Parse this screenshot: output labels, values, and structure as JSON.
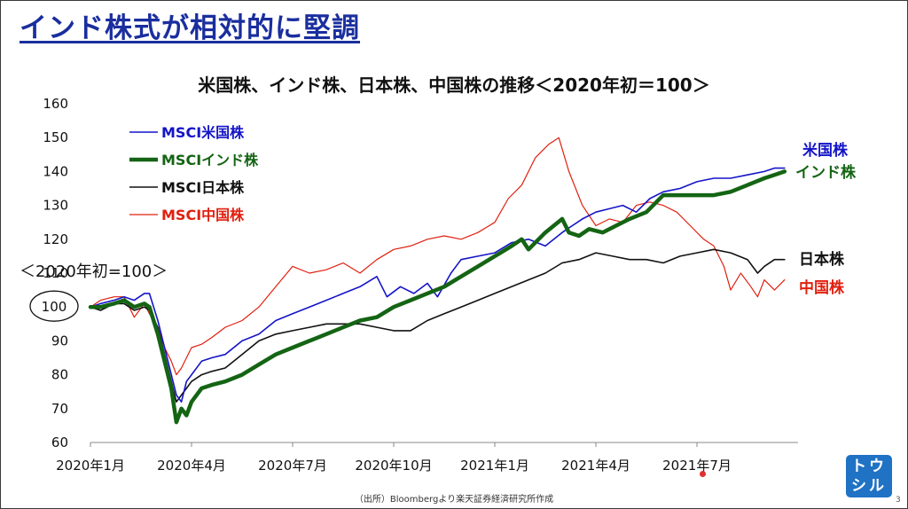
{
  "slide": {
    "title": "インド株式が相対的に堅調",
    "source": "（出所）Bloombergより楽天証券経済研究所作成",
    "page_number": "3",
    "logo_text": [
      "トウ",
      "シル"
    ]
  },
  "colors": {
    "us": "#1414c8",
    "india": "#146414",
    "japan": "#111111",
    "china": "#e02010",
    "title": "#1a2e9e"
  },
  "chart_data": {
    "type": "line",
    "title": "米国株、インド株、日本株、中国株の推移＜2020年初＝100＞",
    "ylabel": "＜2020年初=100＞",
    "baseline_label": "100",
    "ylim": [
      60,
      160
    ],
    "yticks": [
      60,
      70,
      80,
      90,
      100,
      110,
      120,
      130,
      140,
      150,
      160
    ],
    "xlim": [
      0,
      21
    ],
    "xticks": [
      {
        "x": 0,
        "label": "2020年1月"
      },
      {
        "x": 3,
        "label": "2020年4月"
      },
      {
        "x": 6,
        "label": "2020年7月"
      },
      {
        "x": 9,
        "label": "2020年10月"
      },
      {
        "x": 12,
        "label": "2021年1月"
      },
      {
        "x": 15,
        "label": "2021年4月"
      },
      {
        "x": 18,
        "label": "2021年7月"
      }
    ],
    "legend": "top-left",
    "series": [
      {
        "name": "MSCI米国株",
        "end_label": "米国株",
        "key": "us",
        "width": 1.6,
        "points": [
          [
            0,
            100
          ],
          [
            0.3,
            101
          ],
          [
            0.7,
            102
          ],
          [
            1.0,
            103
          ],
          [
            1.3,
            102
          ],
          [
            1.6,
            104
          ],
          [
            1.75,
            104
          ],
          [
            2.0,
            96
          ],
          [
            2.2,
            88
          ],
          [
            2.4,
            80
          ],
          [
            2.55,
            74
          ],
          [
            2.7,
            72
          ],
          [
            2.85,
            78
          ],
          [
            3.0,
            80
          ],
          [
            3.3,
            84
          ],
          [
            3.6,
            85
          ],
          [
            4.0,
            86
          ],
          [
            4.5,
            90
          ],
          [
            5.0,
            92
          ],
          [
            5.5,
            96
          ],
          [
            6.0,
            98
          ],
          [
            6.5,
            100
          ],
          [
            7.0,
            102
          ],
          [
            7.5,
            104
          ],
          [
            8.0,
            106
          ],
          [
            8.5,
            109
          ],
          [
            8.8,
            103
          ],
          [
            9.2,
            106
          ],
          [
            9.6,
            104
          ],
          [
            10.0,
            107
          ],
          [
            10.3,
            103
          ],
          [
            10.7,
            110
          ],
          [
            11.0,
            114
          ],
          [
            11.5,
            115
          ],
          [
            12.0,
            116
          ],
          [
            12.5,
            119
          ],
          [
            13.0,
            120
          ],
          [
            13.5,
            118
          ],
          [
            14.0,
            122
          ],
          [
            14.3,
            124
          ],
          [
            14.6,
            126
          ],
          [
            15.0,
            128
          ],
          [
            15.4,
            129
          ],
          [
            15.8,
            130
          ],
          [
            16.2,
            128
          ],
          [
            16.6,
            132
          ],
          [
            17.0,
            134
          ],
          [
            17.5,
            135
          ],
          [
            18.0,
            137
          ],
          [
            18.5,
            138
          ],
          [
            19.0,
            138
          ],
          [
            19.5,
            139
          ],
          [
            20.0,
            140
          ],
          [
            20.3,
            141
          ],
          [
            20.6,
            141
          ]
        ]
      },
      {
        "name": "MSCIインド株",
        "end_label": "インド株",
        "key": "india",
        "width": 4.5,
        "points": [
          [
            0,
            100
          ],
          [
            0.3,
            100
          ],
          [
            0.7,
            101
          ],
          [
            1.0,
            102
          ],
          [
            1.3,
            100
          ],
          [
            1.6,
            101
          ],
          [
            1.75,
            100
          ],
          [
            2.0,
            92
          ],
          [
            2.2,
            84
          ],
          [
            2.4,
            76
          ],
          [
            2.55,
            66
          ],
          [
            2.7,
            70
          ],
          [
            2.85,
            68
          ],
          [
            3.0,
            72
          ],
          [
            3.3,
            76
          ],
          [
            3.6,
            77
          ],
          [
            4.0,
            78
          ],
          [
            4.5,
            80
          ],
          [
            5.0,
            83
          ],
          [
            5.5,
            86
          ],
          [
            6.0,
            88
          ],
          [
            6.5,
            90
          ],
          [
            7.0,
            92
          ],
          [
            7.5,
            94
          ],
          [
            8.0,
            96
          ],
          [
            8.5,
            97
          ],
          [
            9.0,
            100
          ],
          [
            9.5,
            102
          ],
          [
            10.0,
            104
          ],
          [
            10.5,
            106
          ],
          [
            11.0,
            109
          ],
          [
            11.5,
            112
          ],
          [
            12.0,
            115
          ],
          [
            12.5,
            118
          ],
          [
            12.8,
            120
          ],
          [
            13.0,
            117
          ],
          [
            13.5,
            122
          ],
          [
            14.0,
            126
          ],
          [
            14.2,
            122
          ],
          [
            14.5,
            121
          ],
          [
            14.8,
            123
          ],
          [
            15.2,
            122
          ],
          [
            15.6,
            124
          ],
          [
            16.0,
            126
          ],
          [
            16.5,
            128
          ],
          [
            17.0,
            133
          ],
          [
            17.5,
            133
          ],
          [
            18.0,
            133
          ],
          [
            18.5,
            133
          ],
          [
            19.0,
            134
          ],
          [
            19.5,
            136
          ],
          [
            20.0,
            138
          ],
          [
            20.3,
            139
          ],
          [
            20.6,
            140
          ]
        ]
      },
      {
        "name": "MSCI日本株",
        "end_label": "日本株",
        "key": "japan",
        "width": 1.6,
        "points": [
          [
            0,
            100
          ],
          [
            0.3,
            99
          ],
          [
            0.7,
            101
          ],
          [
            1.0,
            101
          ],
          [
            1.3,
            99
          ],
          [
            1.6,
            100
          ],
          [
            1.75,
            99
          ],
          [
            2.0,
            94
          ],
          [
            2.2,
            86
          ],
          [
            2.4,
            78
          ],
          [
            2.55,
            72
          ],
          [
            2.7,
            74
          ],
          [
            2.85,
            76
          ],
          [
            3.0,
            78
          ],
          [
            3.3,
            80
          ],
          [
            3.6,
            81
          ],
          [
            4.0,
            82
          ],
          [
            4.5,
            86
          ],
          [
            5.0,
            90
          ],
          [
            5.5,
            92
          ],
          [
            6.0,
            93
          ],
          [
            6.5,
            94
          ],
          [
            7.0,
            95
          ],
          [
            7.5,
            95
          ],
          [
            8.0,
            95
          ],
          [
            8.5,
            94
          ],
          [
            9.0,
            93
          ],
          [
            9.5,
            93
          ],
          [
            10.0,
            96
          ],
          [
            10.5,
            98
          ],
          [
            11.0,
            100
          ],
          [
            11.5,
            102
          ],
          [
            12.0,
            104
          ],
          [
            12.5,
            106
          ],
          [
            13.0,
            108
          ],
          [
            13.5,
            110
          ],
          [
            14.0,
            113
          ],
          [
            14.5,
            114
          ],
          [
            15.0,
            116
          ],
          [
            15.5,
            115
          ],
          [
            16.0,
            114
          ],
          [
            16.5,
            114
          ],
          [
            17.0,
            113
          ],
          [
            17.5,
            115
          ],
          [
            18.0,
            116
          ],
          [
            18.5,
            117
          ],
          [
            19.0,
            116
          ],
          [
            19.5,
            114
          ],
          [
            19.8,
            110
          ],
          [
            20.0,
            112
          ],
          [
            20.3,
            114
          ],
          [
            20.6,
            114
          ]
        ]
      },
      {
        "name": "MSCI中国株",
        "end_label": "中国株",
        "key": "china",
        "width": 1.2,
        "points": [
          [
            0,
            100
          ],
          [
            0.3,
            102
          ],
          [
            0.7,
            103
          ],
          [
            1.0,
            103
          ],
          [
            1.3,
            97
          ],
          [
            1.6,
            101
          ],
          [
            1.75,
            98
          ],
          [
            2.0,
            94
          ],
          [
            2.2,
            88
          ],
          [
            2.4,
            84
          ],
          [
            2.55,
            80
          ],
          [
            2.7,
            82
          ],
          [
            2.85,
            85
          ],
          [
            3.0,
            88
          ],
          [
            3.3,
            89
          ],
          [
            3.6,
            91
          ],
          [
            4.0,
            94
          ],
          [
            4.5,
            96
          ],
          [
            5.0,
            100
          ],
          [
            5.5,
            106
          ],
          [
            6.0,
            112
          ],
          [
            6.5,
            110
          ],
          [
            7.0,
            111
          ],
          [
            7.5,
            113
          ],
          [
            8.0,
            110
          ],
          [
            8.5,
            114
          ],
          [
            9.0,
            117
          ],
          [
            9.5,
            118
          ],
          [
            10.0,
            120
          ],
          [
            10.5,
            121
          ],
          [
            11.0,
            120
          ],
          [
            11.5,
            122
          ],
          [
            12.0,
            125
          ],
          [
            12.4,
            132
          ],
          [
            12.8,
            136
          ],
          [
            13.2,
            144
          ],
          [
            13.6,
            148
          ],
          [
            13.9,
            150
          ],
          [
            14.2,
            140
          ],
          [
            14.6,
            130
          ],
          [
            15.0,
            124
          ],
          [
            15.4,
            126
          ],
          [
            15.8,
            125
          ],
          [
            16.2,
            130
          ],
          [
            16.6,
            131
          ],
          [
            17.0,
            130
          ],
          [
            17.4,
            128
          ],
          [
            17.8,
            124
          ],
          [
            18.2,
            120
          ],
          [
            18.5,
            118
          ],
          [
            18.8,
            112
          ],
          [
            19.0,
            105
          ],
          [
            19.3,
            110
          ],
          [
            19.6,
            106
          ],
          [
            19.8,
            103
          ],
          [
            20.0,
            108
          ],
          [
            20.3,
            105
          ],
          [
            20.6,
            108
          ]
        ]
      }
    ]
  }
}
